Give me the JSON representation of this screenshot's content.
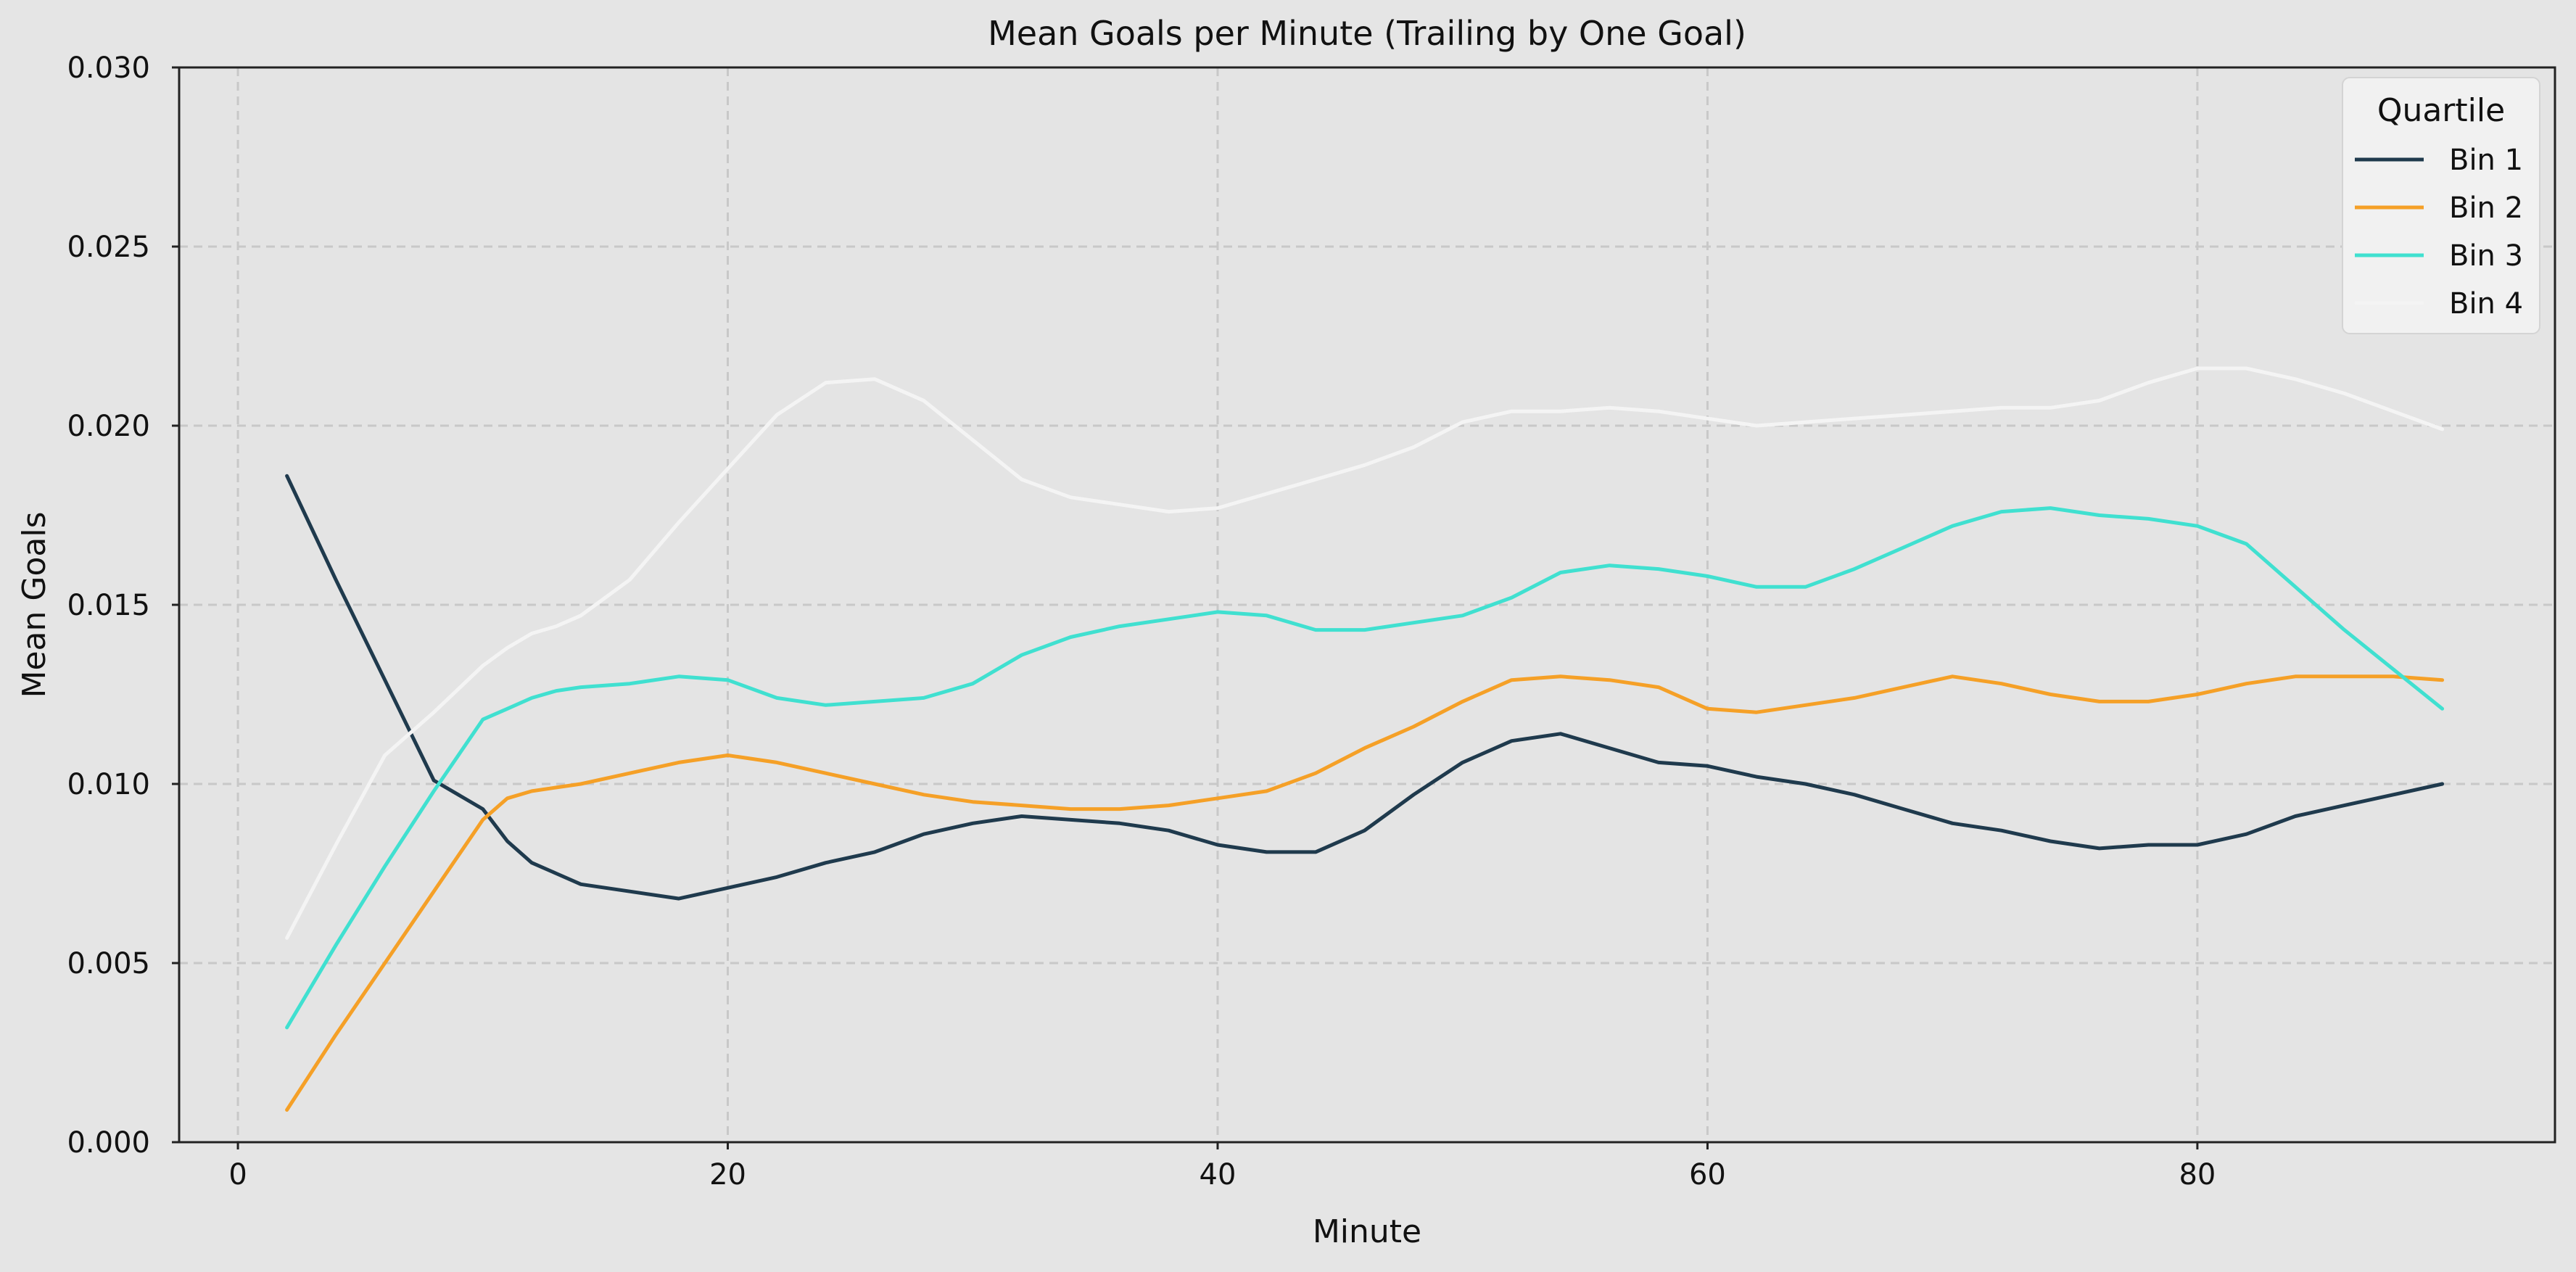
{
  "chart_data": {
    "type": "line",
    "title": "Mean Goals per Minute (Trailing by One Goal)",
    "xlabel": "Minute",
    "ylabel": "Mean Goals",
    "xlim": [
      -2.4,
      94.6
    ],
    "ylim": [
      0,
      0.03
    ],
    "x_ticks": [
      0,
      20,
      40,
      60,
      80
    ],
    "x_tick_labels": [
      "0",
      "20",
      "40",
      "60",
      "80"
    ],
    "y_ticks": [
      0,
      0.005,
      0.01,
      0.015,
      0.02,
      0.025,
      0.03
    ],
    "y_tick_labels": [
      "0.000",
      "0.005",
      "0.010",
      "0.015",
      "0.020",
      "0.025",
      "0.030"
    ],
    "grid": true,
    "legend": {
      "title": "Quartile",
      "position": "top-right"
    },
    "x": [
      2,
      4,
      6,
      8,
      10,
      11,
      12,
      13,
      14,
      16,
      18,
      20,
      22,
      24,
      26,
      28,
      30,
      32,
      34,
      36,
      38,
      40,
      42,
      44,
      46,
      48,
      50,
      52,
      54,
      56,
      58,
      60,
      62,
      64,
      66,
      68,
      70,
      72,
      74,
      76,
      78,
      80,
      82,
      84,
      86,
      88,
      90
    ],
    "series": [
      {
        "name": "Bin 1",
        "color": "#1f3a4d",
        "values": [
          0.0186,
          0.0157,
          0.0129,
          0.0101,
          0.0093,
          0.0084,
          0.0078,
          0.0075,
          0.0072,
          0.007,
          0.0068,
          0.0071,
          0.0074,
          0.0078,
          0.0081,
          0.0086,
          0.0089,
          0.0091,
          0.009,
          0.0089,
          0.0087,
          0.0083,
          0.0081,
          0.0081,
          0.0087,
          0.0097,
          0.0106,
          0.0112,
          0.0114,
          0.011,
          0.0106,
          0.0105,
          0.0102,
          0.01,
          0.0097,
          0.0093,
          0.0089,
          0.0087,
          0.0084,
          0.0082,
          0.0083,
          0.0083,
          0.0086,
          0.0091,
          0.0094,
          0.0097,
          0.01
        ]
      },
      {
        "name": "Bin 2",
        "color": "#f5a027",
        "values": [
          0.0009,
          0.003,
          0.005,
          0.007,
          0.009,
          0.0096,
          0.0098,
          0.0099,
          0.01,
          0.0103,
          0.0106,
          0.0108,
          0.0106,
          0.0103,
          0.01,
          0.0097,
          0.0095,
          0.0094,
          0.0093,
          0.0093,
          0.0094,
          0.0096,
          0.0098,
          0.0103,
          0.011,
          0.0116,
          0.0123,
          0.0129,
          0.013,
          0.0129,
          0.0127,
          0.0121,
          0.012,
          0.0122,
          0.0124,
          0.0127,
          0.013,
          0.0128,
          0.0125,
          0.0123,
          0.0123,
          0.0125,
          0.0128,
          0.013,
          0.013,
          0.013,
          0.0129
        ]
      },
      {
        "name": "Bin 3",
        "color": "#40e0d0",
        "values": [
          0.0032,
          0.0055,
          0.0077,
          0.0098,
          0.0118,
          0.0121,
          0.0124,
          0.0126,
          0.0127,
          0.0128,
          0.013,
          0.0129,
          0.0124,
          0.0122,
          0.0123,
          0.0124,
          0.0128,
          0.0136,
          0.0141,
          0.0144,
          0.0146,
          0.0148,
          0.0147,
          0.0143,
          0.0143,
          0.0145,
          0.0147,
          0.0152,
          0.0159,
          0.0161,
          0.016,
          0.0158,
          0.0155,
          0.0155,
          0.016,
          0.0166,
          0.0172,
          0.0176,
          0.0177,
          0.0175,
          0.0174,
          0.0172,
          0.0167,
          0.0155,
          0.0143,
          0.0132,
          0.0121
        ]
      },
      {
        "name": "Bin 4",
        "color": "#f4f4f4",
        "values": [
          0.0057,
          0.0083,
          0.0108,
          0.012,
          0.0133,
          0.0138,
          0.0142,
          0.0144,
          0.0147,
          0.0157,
          0.0173,
          0.0188,
          0.0203,
          0.0212,
          0.0213,
          0.0207,
          0.0196,
          0.0185,
          0.018,
          0.0178,
          0.0176,
          0.0177,
          0.0181,
          0.0185,
          0.0189,
          0.0194,
          0.0201,
          0.0204,
          0.0204,
          0.0205,
          0.0204,
          0.0202,
          0.02,
          0.0201,
          0.0202,
          0.0203,
          0.0204,
          0.0205,
          0.0205,
          0.0207,
          0.0212,
          0.0216,
          0.0216,
          0.0213,
          0.0209,
          0.0204,
          0.0199
        ]
      }
    ]
  }
}
